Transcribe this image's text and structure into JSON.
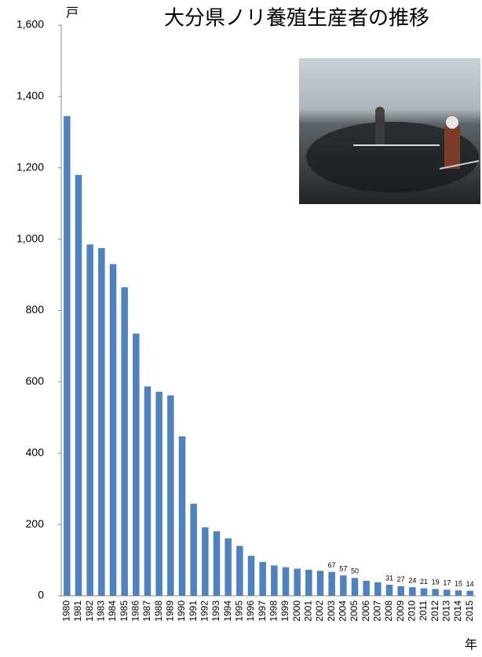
{
  "chart_data": {
    "type": "bar",
    "title": "大分県ノリ養殖生産者の推移",
    "y_label": "戸",
    "x_label": "年",
    "categories": [
      "1980",
      "1981",
      "1982",
      "1983",
      "1984",
      "1985",
      "1986",
      "1987",
      "1988",
      "1989",
      "1990",
      "1991",
      "1992",
      "1993",
      "1994",
      "1995",
      "1996",
      "1997",
      "1998",
      "1999",
      "2000",
      "2001",
      "2002",
      "2003",
      "2004",
      "2005",
      "2006",
      "2007",
      "2008",
      "2009",
      "2010",
      "2011",
      "2012",
      "2013",
      "2014",
      "2015"
    ],
    "values": [
      1345,
      1180,
      985,
      975,
      930,
      865,
      735,
      587,
      572,
      562,
      447,
      258,
      192,
      181,
      161,
      140,
      112,
      95,
      85,
      80,
      76,
      73,
      70,
      67,
      57,
      50,
      42,
      38,
      31,
      27,
      24,
      21,
      19,
      17,
      15,
      14
    ],
    "value_labels": [
      null,
      null,
      null,
      null,
      null,
      null,
      null,
      null,
      null,
      null,
      null,
      null,
      null,
      null,
      null,
      null,
      null,
      null,
      null,
      null,
      null,
      null,
      null,
      "67",
      "57",
      "50",
      null,
      null,
      "31",
      "27",
      "24",
      "21",
      "19",
      "17",
      "15",
      "14"
    ],
    "color": "#4f81bd",
    "ylim": [
      0,
      1600
    ],
    "yticks": [
      0,
      200,
      400,
      600,
      800,
      {
        "value": 1000,
        "label": "1,000"
      },
      {
        "value": 1200,
        "label": "1,200"
      },
      {
        "value": 1400,
        "label": "1,400"
      },
      {
        "value": 1600,
        "label": "1,600"
      }
    ],
    "grid": false
  }
}
